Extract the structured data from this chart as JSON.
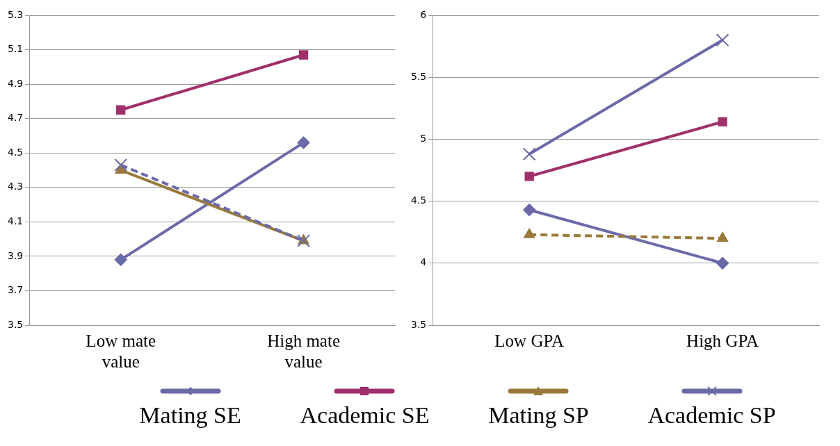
{
  "chart_data": [
    {
      "type": "line",
      "categories": [
        "Low mate value",
        "High mate value"
      ],
      "ylim": [
        3.5,
        5.3
      ],
      "yticks": [
        3.5,
        3.7,
        3.9,
        4.1,
        4.3,
        4.5,
        4.7,
        4.9,
        5.1,
        5.3
      ],
      "grid": "y",
      "legend": "bottom",
      "series": [
        {
          "name": "Mating SE",
          "color": "#6b6aa8",
          "marker": "diamond",
          "line_style": "solid",
          "values": [
            3.88,
            4.56
          ]
        },
        {
          "name": "Academic SE",
          "color": "#a0306a",
          "marker": "square",
          "line_style": "solid",
          "values": [
            4.75,
            5.07
          ]
        },
        {
          "name": "Mating SP",
          "color": "#9a7a3a",
          "marker": "triangle",
          "line_style": "solid",
          "values": [
            4.4,
            3.99
          ]
        },
        {
          "name": "Academic SP",
          "color": "#6b6aa8",
          "marker": "cross",
          "line_style": "dashed",
          "values": [
            4.43,
            3.99
          ]
        }
      ]
    },
    {
      "type": "line",
      "categories": [
        "Low GPA",
        "High GPA"
      ],
      "ylim": [
        3.5,
        6
      ],
      "yticks": [
        3.5,
        4,
        4.5,
        5,
        5.5,
        6
      ],
      "grid": "y",
      "series": [
        {
          "color": "#6b6aa8",
          "marker": "diamond",
          "line_style": "solid",
          "values": [
            4.43,
            4.0
          ]
        },
        {
          "color": "#a0306a",
          "marker": "square",
          "line_style": "solid",
          "values": [
            4.7,
            5.14
          ]
        },
        {
          "color": "#9a7a3a",
          "marker": "triangle",
          "line_style": "dashed",
          "values": [
            4.23,
            4.2
          ]
        },
        {
          "color": "#6b6aa8",
          "marker": "cross",
          "line_style": "solid",
          "values": [
            4.88,
            5.8
          ]
        }
      ]
    }
  ]
}
